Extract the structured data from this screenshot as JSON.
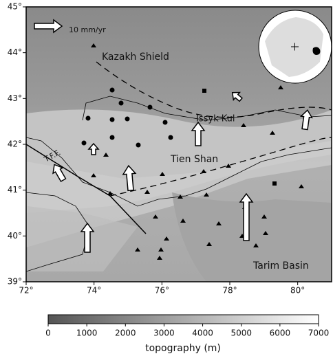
{
  "map": {
    "lon_range": [
      72,
      81
    ],
    "lat_range": [
      39,
      45
    ],
    "lon_ticks": [
      {
        "value": 72,
        "label": "72°"
      },
      {
        "value": 74,
        "label": "74°"
      },
      {
        "value": 76,
        "label": "76°"
      },
      {
        "value": 78,
        "label": "78°"
      },
      {
        "value": 80,
        "label": "80°"
      }
    ],
    "lat_ticks": [
      {
        "value": 39,
        "label": "39°"
      },
      {
        "value": 40,
        "label": "40°"
      },
      {
        "value": 41,
        "label": "41°"
      },
      {
        "value": 42,
        "label": "42°"
      },
      {
        "value": 43,
        "label": "43°"
      },
      {
        "value": 44,
        "label": "44°"
      },
      {
        "value": 45,
        "label": "45°"
      }
    ],
    "places": {
      "kazakh": "Kazakh Shield",
      "issyk": "Issyk Kul",
      "tien": "Tien Shan",
      "tarim": "Tarim Basin",
      "tff": "T.F.F."
    },
    "scale_arrow": "10 mm/yr"
  },
  "colorbar": {
    "range": [
      0,
      7000
    ],
    "ticks": [
      0,
      1000,
      2000,
      3000,
      4000,
      5000,
      6000,
      7000
    ],
    "title": "topography (m)"
  }
}
